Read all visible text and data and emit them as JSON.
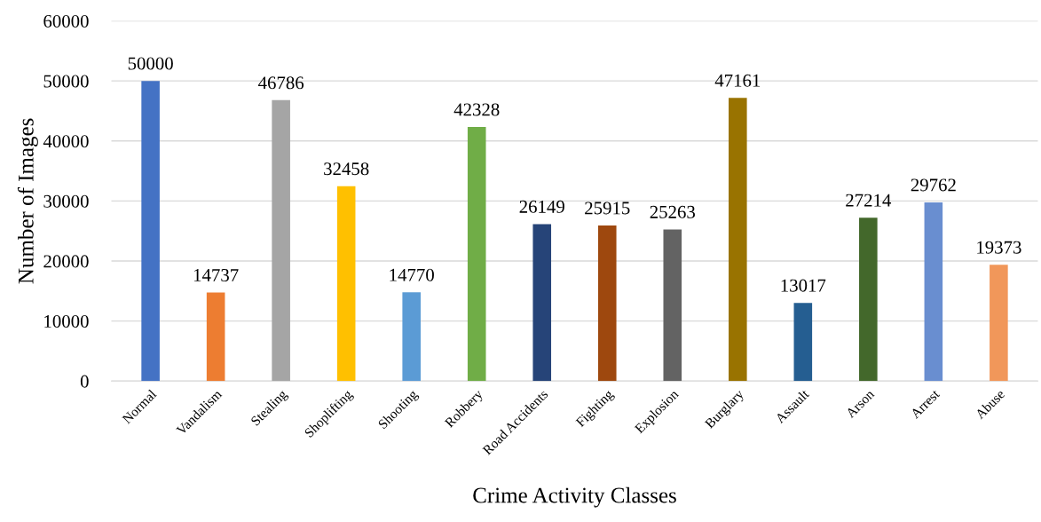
{
  "chart_data": {
    "type": "bar",
    "xlabel": "Crime Activity Classes",
    "ylabel": "Number of Images",
    "categories": [
      "Normal",
      "Vandalism",
      "Stealing",
      "Shoplifting",
      "Shooting",
      "Robbery",
      "Road Accidents",
      "Fighting",
      "Explosion",
      "Burglary",
      "Assault",
      "Arson",
      "Arrest",
      "Abuse"
    ],
    "values": [
      50000,
      14737,
      46786,
      32458,
      14770,
      42328,
      26149,
      25915,
      25263,
      47161,
      13017,
      27214,
      29762,
      19373
    ],
    "colors": [
      "#4472c4",
      "#ed7d31",
      "#a5a5a5",
      "#ffc000",
      "#5b9bd5",
      "#70ad47",
      "#264478",
      "#9e480e",
      "#636363",
      "#997300",
      "#255e91",
      "#43682b",
      "#698ed0",
      "#f1975a"
    ],
    "ylim": [
      0,
      60000
    ],
    "yticks": [
      0,
      10000,
      20000,
      30000,
      40000,
      50000,
      60000
    ],
    "grid": "y",
    "data_labels": true,
    "legend": false
  }
}
